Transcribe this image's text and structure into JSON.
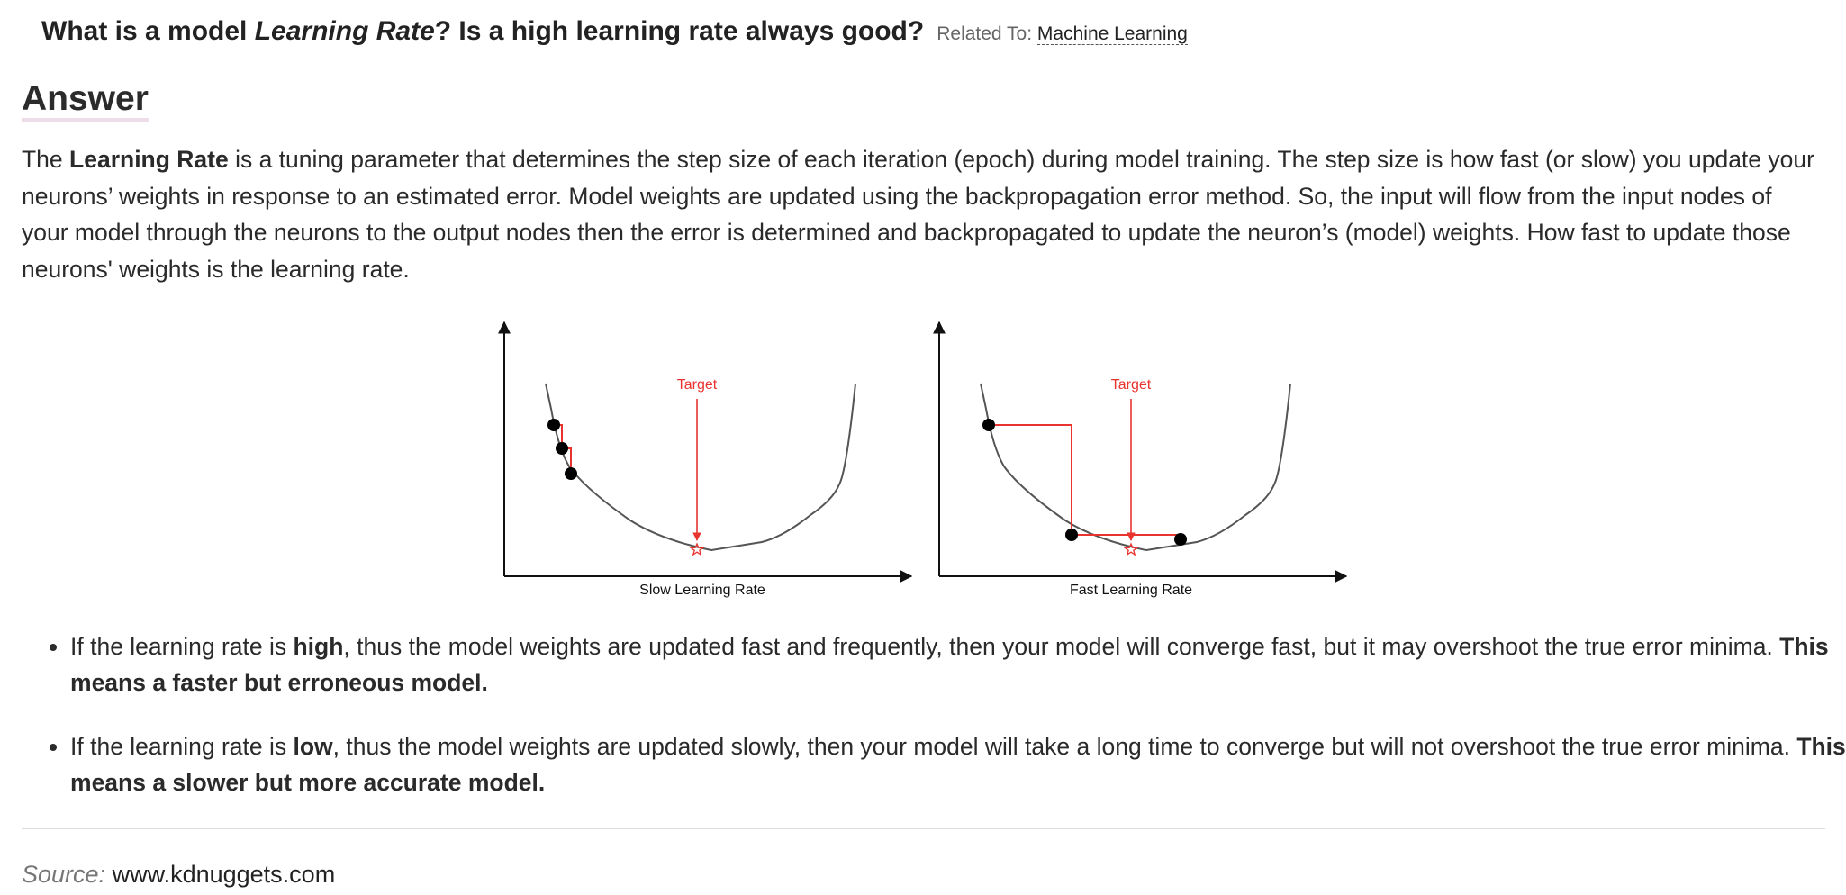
{
  "question": {
    "pre": "What is a model ",
    "em": "Learning Rate",
    "post": "? Is a high learning rate always good?",
    "related_label": "Related To:",
    "related_link": "Machine Learning"
  },
  "answer_heading": "Answer",
  "paragraph": {
    "t1": "The ",
    "b1": "Learning Rate",
    "t2": " is a tuning parameter that determines the step size of each iteration (epoch) during model training. The step size is how fast (or slow) you update your neurons’ weights in response to an estimated error. Model weights are updated using the backpropagation error method. So, the input will flow from the input nodes of your model through the neurons to the output nodes then the error is determined and backpropagated to update the neuron’s (model) weights. How fast to update those neurons' weights is the learning rate."
  },
  "figure": {
    "left_target": "Target",
    "left_caption": "Slow Learning Rate",
    "right_target": "Target",
    "right_caption": "Fast Learning Rate",
    "curve_color": "#555555",
    "accent_color": "#e8332e"
  },
  "bullets": [
    {
      "t1": "If the learning rate is ",
      "b1": "high",
      "t2": ", thus the model weights are updated fast and frequently, then your model will converge fast, but it may overshoot the true error minima. ",
      "b2": "This means a faster but erroneous model."
    },
    {
      "t1": "If the learning rate is ",
      "b1": "low",
      "t2": ", thus the model weights are updated slowly, then your model will take a long time to converge but will not overshoot the true error minima. ",
      "b2": "This means a slower but more accurate model."
    }
  ],
  "source": {
    "label": "Source:",
    "value": "www.kdnuggets.com"
  }
}
